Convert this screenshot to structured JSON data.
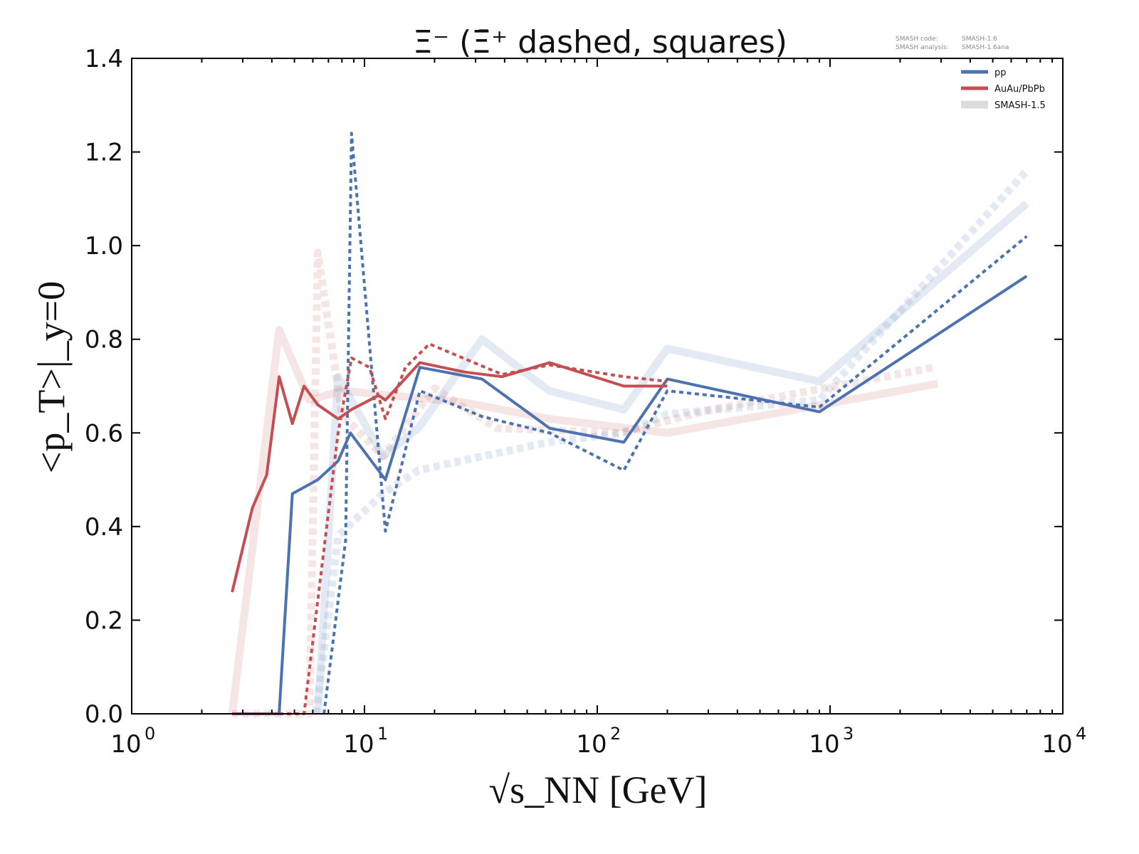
{
  "chart_data": {
    "type": "line",
    "title": "Ξ⁻ (Ξ̄⁺ dashed, squares)",
    "xlabel": "√s_NN [GeV]",
    "ylabel": "<p_T>|_y=0",
    "xscale": "log",
    "xlim": [
      1,
      10000
    ],
    "ylim": [
      0,
      1.4
    ],
    "x_tick_labels": [
      {
        "base": "10",
        "exp": "0"
      },
      {
        "base": "10",
        "exp": "1"
      },
      {
        "base": "10",
        "exp": "2"
      },
      {
        "base": "10",
        "exp": "3"
      },
      {
        "base": "10",
        "exp": "4"
      }
    ],
    "y_ticks": [
      "0.0",
      "0.2",
      "0.4",
      "0.6",
      "0.8",
      "1.0",
      "1.2",
      "1.4"
    ],
    "annotation": {
      "line1_key": "SMASH code:",
      "line1_val": "SMASH-1.6",
      "line2_key": "SMASH analysis:",
      "line2_val": "SMASH-1.6ana"
    },
    "legend": {
      "placement": "top-right",
      "entries": [
        {
          "label": "pp",
          "color": "#4c72b0"
        },
        {
          "label": "AuAu/PbPb",
          "color": "#c44e52"
        },
        {
          "label": "SMASH-1.5",
          "color": "#dddddd"
        }
      ]
    },
    "series": [
      {
        "name": "SMASH-1.5 AuAu/PbPb Ξ⁻",
        "color": "#c44e52",
        "faded": true,
        "dashed": false,
        "x": [
          2.7,
          4.3,
          5.8,
          8.0,
          27,
          62,
          200,
          2900
        ],
        "y": [
          0.0,
          0.82,
          0.67,
          0.69,
          0.665,
          0.63,
          0.6,
          0.705
        ]
      },
      {
        "name": "SMASH-1.5 AuAu/PbPb anti-Ξ⁺",
        "color": "#c44e52",
        "faded": true,
        "dashed": true,
        "x": [
          2.7,
          5.8,
          6.3,
          8.0,
          12,
          20,
          37,
          125,
          310,
          2800
        ],
        "y": [
          0.0,
          0.0,
          0.985,
          0.64,
          0.55,
          0.695,
          0.61,
          0.6,
          0.65,
          0.74
        ]
      },
      {
        "name": "SMASH-1.5 pp Ξ⁻",
        "color": "#4c72b0",
        "faded": true,
        "dashed": false,
        "x": [
          6.3,
          7.7,
          12,
          17,
          32,
          62,
          130,
          200,
          900,
          7000
        ],
        "y": [
          0.0,
          0.72,
          0.55,
          0.61,
          0.8,
          0.69,
          0.65,
          0.78,
          0.71,
          1.09
        ]
      },
      {
        "name": "SMASH-1.5 pp anti-Ξ⁺",
        "color": "#4c72b0",
        "faded": true,
        "dashed": true,
        "x": [
          6.2,
          7.7,
          12,
          17,
          32,
          62,
          130,
          200,
          900,
          7000
        ],
        "y": [
          0.0,
          0.38,
          0.47,
          0.52,
          0.55,
          0.58,
          0.6,
          0.64,
          0.67,
          1.16
        ]
      },
      {
        "name": "pp Ξ⁻",
        "color": "#4c72b0",
        "faded": false,
        "dashed": false,
        "x": [
          2.7,
          4.3,
          4.9,
          6.3,
          7.7,
          8.7,
          12.3,
          17.3,
          32,
          62.4,
          130,
          200,
          900,
          7000
        ],
        "y": [
          0.0,
          0.0,
          0.47,
          0.5,
          0.54,
          0.6,
          0.5,
          0.74,
          0.715,
          0.61,
          0.58,
          0.715,
          0.645,
          0.935
        ]
      },
      {
        "name": "pp anti-Ξ⁺",
        "color": "#4c72b0",
        "faded": false,
        "dashed": true,
        "x": [
          6.7,
          8.3,
          8.8,
          12.3,
          17.3,
          32,
          62.4,
          130,
          200,
          900,
          7000
        ],
        "y": [
          0.0,
          0.37,
          1.24,
          0.39,
          0.69,
          0.635,
          0.6,
          0.52,
          0.69,
          0.655,
          1.02
        ]
      },
      {
        "name": "AuAu/PbPb Ξ⁻",
        "color": "#c44e52",
        "faded": false,
        "dashed": false,
        "x": [
          2.7,
          3.3,
          3.8,
          4.3,
          4.9,
          5.5,
          6.3,
          7.7,
          8.8,
          11.5,
          12.3,
          17.3,
          27,
          39,
          62.4,
          130,
          200
        ],
        "y": [
          0.26,
          0.44,
          0.51,
          0.72,
          0.62,
          0.7,
          0.66,
          0.63,
          0.65,
          0.68,
          0.67,
          0.75,
          0.73,
          0.72,
          0.75,
          0.7,
          0.7
        ]
      },
      {
        "name": "AuAu/PbPb anti-Ξ⁺",
        "color": "#c44e52",
        "faded": false,
        "dashed": true,
        "x": [
          2.7,
          5.5,
          7.7,
          8.8,
          10.5,
          12.3,
          15,
          19,
          39,
          62.4,
          130,
          200
        ],
        "y": [
          0.0,
          0.0,
          0.6,
          0.76,
          0.74,
          0.63,
          0.74,
          0.79,
          0.725,
          0.745,
          0.72,
          0.71
        ]
      }
    ]
  }
}
